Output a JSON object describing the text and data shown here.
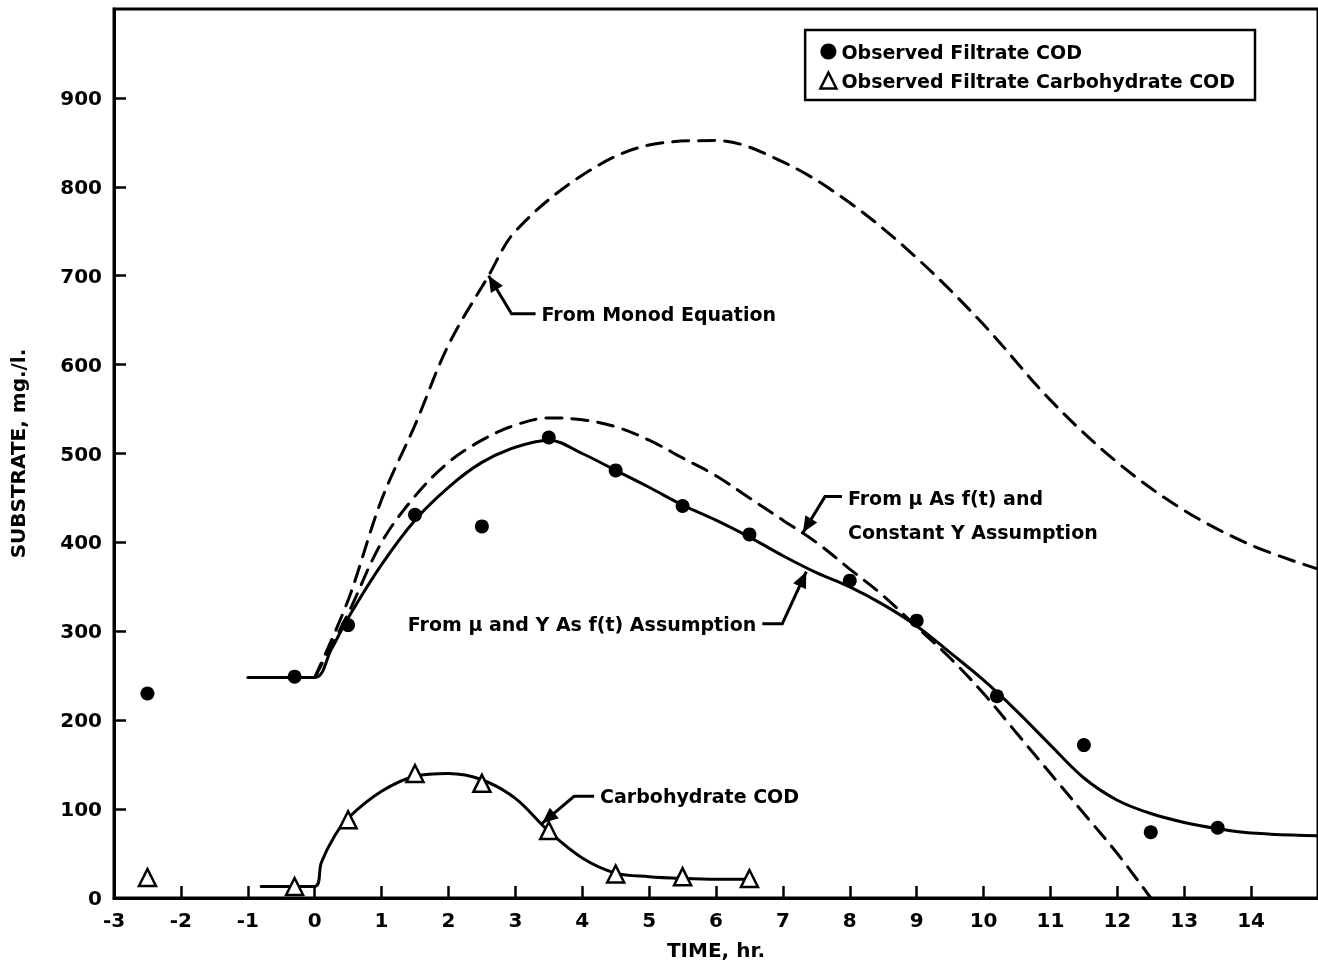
{
  "chart_data": {
    "type": "line",
    "xlabel": "TIME, hr.",
    "ylabel": "SUBSTRATE, mg./l.",
    "xlim": [
      -3,
      15
    ],
    "xticks": [
      -3,
      -2,
      -1,
      0,
      1,
      2,
      3,
      4,
      5,
      6,
      7,
      8,
      9,
      10,
      11,
      12,
      13,
      14
    ],
    "ylim": [
      0,
      1000
    ],
    "yticks": [
      0,
      100,
      200,
      300,
      400,
      500,
      600,
      700,
      800,
      900
    ],
    "grid": false,
    "legend": "top right",
    "series": [
      {
        "name": "Observed Filtrate COD",
        "type": "scatter",
        "marker": "circle",
        "color": "#000000",
        "x": [
          -2.5,
          -0.3,
          0.5,
          1.5,
          2.5,
          3.5,
          4.5,
          5.5,
          6.5,
          8,
          9,
          10.2,
          11.5,
          12.5,
          13.5
        ],
        "values": [
          230,
          249,
          307,
          431,
          418,
          518,
          481,
          441,
          409,
          357,
          312,
          227,
          172,
          74,
          79
        ]
      },
      {
        "name": "Observed Filtrate Carbohydrate COD",
        "type": "scatter",
        "marker": "triangle",
        "color": "#000000",
        "x": [
          -2.5,
          -0.3,
          0.5,
          1.5,
          2.5,
          3.5,
          4.5,
          5.5,
          6.5
        ],
        "values": [
          23,
          13,
          88,
          140,
          129,
          76,
          27,
          24,
          22
        ]
      },
      {
        "type": "line",
        "line_style": "solid",
        "color": "#000000",
        "x": [
          -1,
          0,
          0.25,
          0.5,
          1,
          1.5,
          2,
          2.5,
          3,
          3.5,
          4,
          4.5,
          5,
          5.5,
          6,
          6.5,
          7,
          7.5,
          8,
          8.5,
          9,
          9.5,
          10,
          10.5,
          11,
          11.5,
          12,
          12.5,
          13,
          13.5,
          14,
          15
        ],
        "values": [
          248,
          248,
          280,
          315,
          375,
          425,
          462,
          490,
          507,
          515,
          500,
          481,
          462,
          442,
          425,
          406,
          385,
          366,
          350,
          330,
          306,
          276,
          245,
          210,
          172,
          135,
          110,
          95,
          85,
          78,
          73,
          70
        ]
      },
      {
        "type": "line",
        "line_style": "dashed",
        "color": "#000000",
        "x": [
          0,
          0.5,
          1,
          1.5,
          2,
          2.5,
          3,
          3.5,
          4,
          4.5,
          5,
          5.5,
          6,
          6.5,
          7,
          7.5,
          8,
          8.5,
          9,
          9.5,
          10,
          10.5,
          11,
          11.5,
          12,
          12.5
        ],
        "values": [
          248,
          320,
          400,
          452,
          490,
          515,
          532,
          540,
          538,
          530,
          515,
          495,
          475,
          450,
          425,
          400,
          370,
          340,
          305,
          270,
          230,
          185,
          140,
          95,
          50,
          0
        ]
      },
      {
        "type": "line",
        "line_style": "dashed",
        "color": "#000000",
        "x": [
          0,
          0.5,
          1,
          1.5,
          2,
          2.6,
          3,
          4,
          5,
          6,
          7,
          8,
          9,
          10,
          11,
          12,
          13,
          14,
          15
        ],
        "values": [
          248,
          335,
          448,
          532,
          622,
          700,
          750,
          813,
          847,
          852,
          828,
          782,
          720,
          645,
          560,
          490,
          436,
          397,
          370
        ]
      },
      {
        "type": "line",
        "line_style": "solid",
        "color": "#000000",
        "x": [
          -0.8,
          0,
          0.1,
          0.3,
          0.5,
          1,
          1.5,
          2,
          2.5,
          3,
          3.5,
          4,
          4.5,
          5,
          5.5,
          6,
          6.5
        ],
        "values": [
          13,
          13,
          40,
          70,
          90,
          120,
          137,
          140,
          133,
          112,
          75,
          45,
          28,
          24,
          22,
          21,
          21
        ]
      }
    ],
    "annotations": [
      {
        "text": "From Monod Equation",
        "x": 2.6,
        "y": 700
      },
      {
        "text": "From μ As f(t) and Constant Y Assumption",
        "x": 7.3,
        "y": 411
      },
      {
        "text": "From μ and Y As f(t) Assumption",
        "x": 7.35,
        "y": 367
      },
      {
        "text": "Carbohydrate COD",
        "x": 3.4,
        "y": 84
      }
    ]
  }
}
